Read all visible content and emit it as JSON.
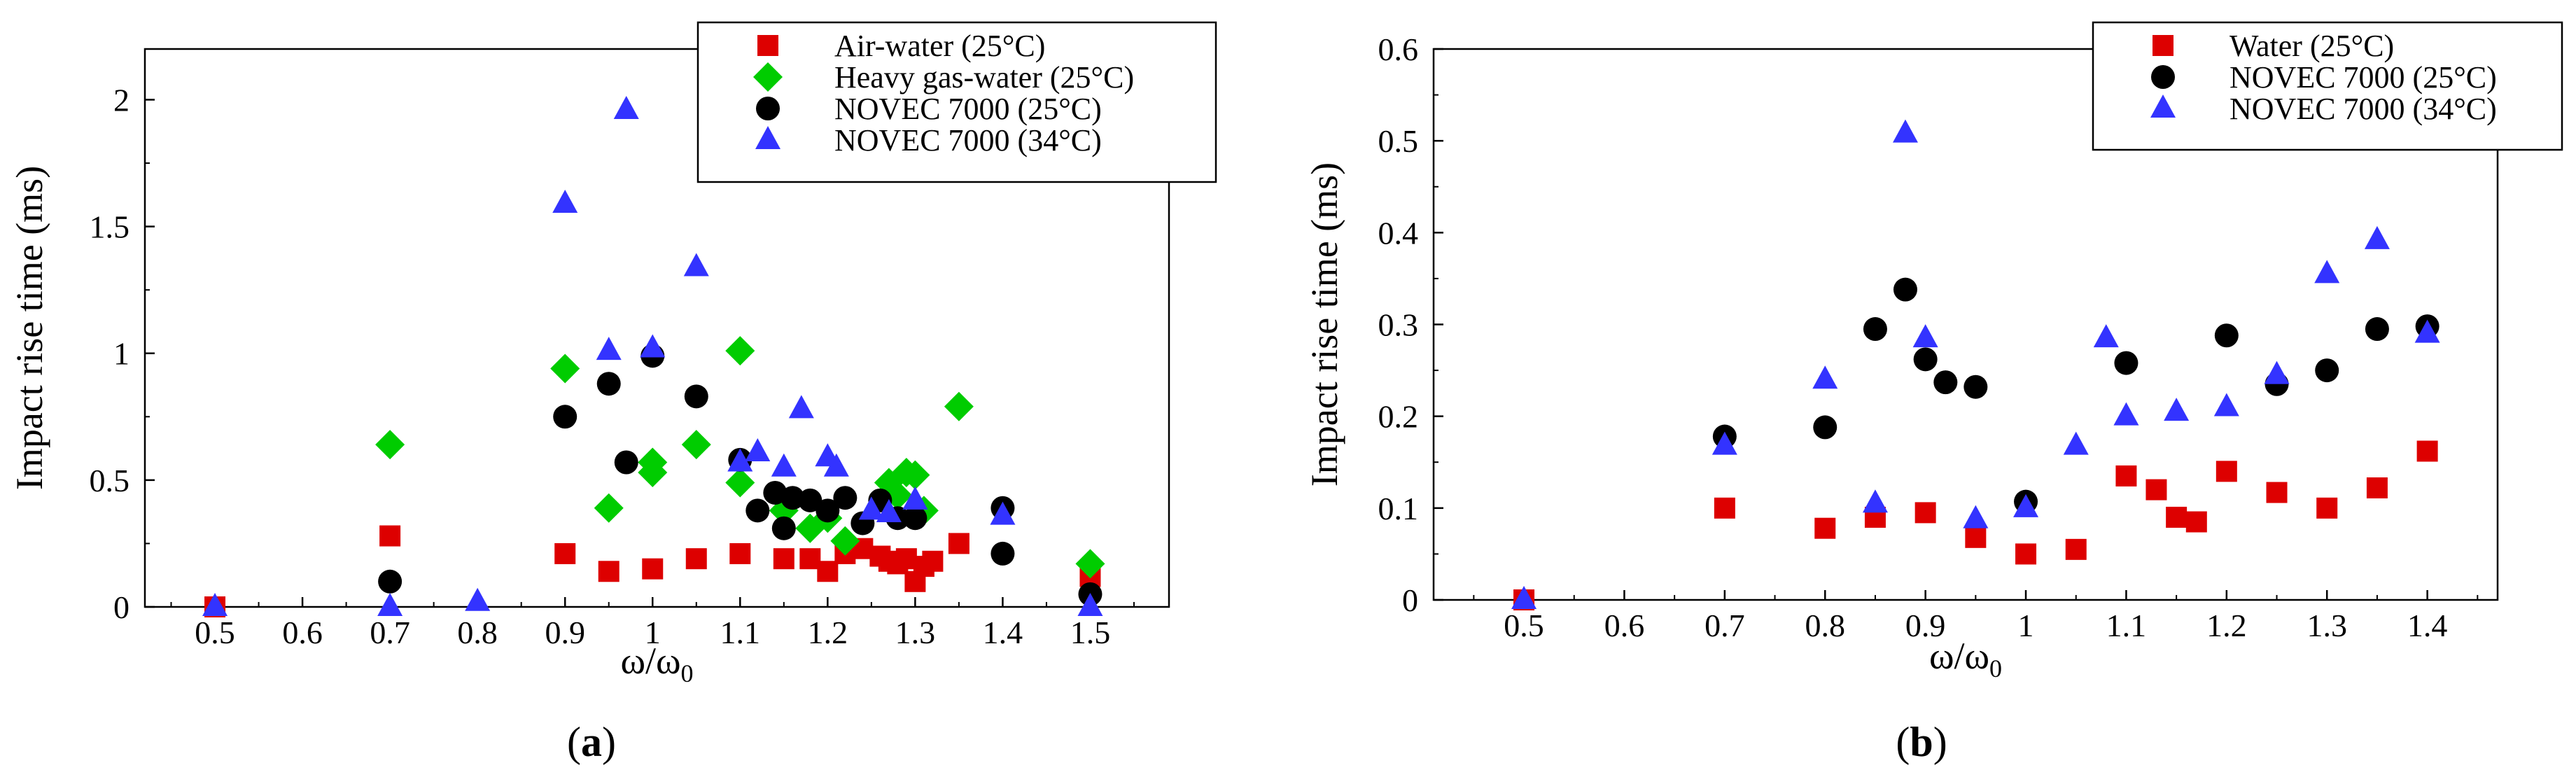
{
  "chart_data": [
    {
      "type": "scatter",
      "caption_letter": "a",
      "xlabel_main": "ω/ω",
      "xlabel_sub": "0",
      "ylabel": "Impact rise time (ms)",
      "xlim": [
        0.42,
        1.59
      ],
      "ylim": [
        0,
        2.2
      ],
      "xticks": [
        "0.5",
        "0.6",
        "0.7",
        "0.8",
        "0.9",
        "1",
        "1.1",
        "1.2",
        "1.3",
        "1.4",
        "1.5"
      ],
      "yticks": [
        "0",
        "0.5",
        "1",
        "1.5",
        "2"
      ],
      "grid": false,
      "legend_position": "top-right",
      "series": [
        {
          "name": "Air-water (25°C)",
          "marker": "square",
          "color": "#dd0000",
          "points": [
            [
              0.5,
              0.0
            ],
            [
              0.7,
              0.28
            ],
            [
              0.9,
              0.21
            ],
            [
              0.95,
              0.14
            ],
            [
              1.0,
              0.15
            ],
            [
              1.05,
              0.19
            ],
            [
              1.1,
              0.21
            ],
            [
              1.15,
              0.19
            ],
            [
              1.18,
              0.19
            ],
            [
              1.2,
              0.14
            ],
            [
              1.22,
              0.21
            ],
            [
              1.24,
              0.23
            ],
            [
              1.26,
              0.2
            ],
            [
              1.27,
              0.18
            ],
            [
              1.28,
              0.17
            ],
            [
              1.29,
              0.19
            ],
            [
              1.3,
              0.1
            ],
            [
              1.31,
              0.16
            ],
            [
              1.32,
              0.18
            ],
            [
              1.35,
              0.25
            ],
            [
              1.5,
              0.12
            ]
          ]
        },
        {
          "name": "Heavy gas-water (25°C)",
          "marker": "diamond",
          "color": "#00cc00",
          "points": [
            [
              0.7,
              0.64
            ],
            [
              0.9,
              0.94
            ],
            [
              0.95,
              0.39
            ],
            [
              1.0,
              0.57
            ],
            [
              1.0,
              0.53
            ],
            [
              1.05,
              0.64
            ],
            [
              1.1,
              1.01
            ],
            [
              1.1,
              0.49
            ],
            [
              1.15,
              0.38
            ],
            [
              1.18,
              0.31
            ],
            [
              1.2,
              0.35
            ],
            [
              1.22,
              0.26
            ],
            [
              1.27,
              0.49
            ],
            [
              1.28,
              0.44
            ],
            [
              1.29,
              0.53
            ],
            [
              1.3,
              0.52
            ],
            [
              1.31,
              0.38
            ],
            [
              1.35,
              0.79
            ],
            [
              1.5,
              0.17
            ]
          ]
        },
        {
          "name": "NOVEC 7000 (25°C)",
          "marker": "circle",
          "color": "#000000",
          "points": [
            [
              0.7,
              0.1
            ],
            [
              0.9,
              0.75
            ],
            [
              0.95,
              0.88
            ],
            [
              0.97,
              0.57
            ],
            [
              1.0,
              0.99
            ],
            [
              1.05,
              0.83
            ],
            [
              1.1,
              0.58
            ],
            [
              1.12,
              0.38
            ],
            [
              1.14,
              0.45
            ],
            [
              1.15,
              0.31
            ],
            [
              1.16,
              0.43
            ],
            [
              1.18,
              0.42
            ],
            [
              1.2,
              0.38
            ],
            [
              1.22,
              0.43
            ],
            [
              1.24,
              0.33
            ],
            [
              1.26,
              0.42
            ],
            [
              1.28,
              0.35
            ],
            [
              1.3,
              0.35
            ],
            [
              1.4,
              0.39
            ],
            [
              1.4,
              0.21
            ],
            [
              1.5,
              0.05
            ]
          ]
        },
        {
          "name": "NOVEC 7000 (34°C)",
          "marker": "triangle",
          "color": "#3333ff",
          "points": [
            [
              0.5,
              0.0
            ],
            [
              0.7,
              0.0
            ],
            [
              0.8,
              0.02
            ],
            [
              0.9,
              1.59
            ],
            [
              0.95,
              1.01
            ],
            [
              0.97,
              1.96
            ],
            [
              1.0,
              1.02
            ],
            [
              1.05,
              1.34
            ],
            [
              1.1,
              0.57
            ],
            [
              1.12,
              0.61
            ],
            [
              1.15,
              0.55
            ],
            [
              1.17,
              0.78
            ],
            [
              1.2,
              0.59
            ],
            [
              1.21,
              0.55
            ],
            [
              1.25,
              0.38
            ],
            [
              1.27,
              0.37
            ],
            [
              1.3,
              0.42
            ],
            [
              1.4,
              0.36
            ],
            [
              1.5,
              0.0
            ]
          ]
        }
      ]
    },
    {
      "type": "scatter",
      "caption_letter": "b",
      "xlabel_main": "ω/ω",
      "xlabel_sub": "0",
      "ylabel": "Impact rise time (ms)",
      "xlim": [
        0.41,
        1.47
      ],
      "ylim": [
        0,
        0.6
      ],
      "xticks": [
        "0.5",
        "0.6",
        "0.7",
        "0.8",
        "0.9",
        "1",
        "1.1",
        "1.2",
        "1.3",
        "1.4"
      ],
      "yticks": [
        "0",
        "0.1",
        "0.2",
        "0.3",
        "0.4",
        "0.5",
        "0.6"
      ],
      "grid": false,
      "legend_position": "top-right",
      "series": [
        {
          "name": "Water (25°C)",
          "marker": "square",
          "color": "#dd0000",
          "points": [
            [
              0.5,
              0.0
            ],
            [
              0.7,
              0.1
            ],
            [
              0.8,
              0.078
            ],
            [
              0.85,
              0.09
            ],
            [
              0.9,
              0.095
            ],
            [
              0.95,
              0.068
            ],
            [
              1.0,
              0.05
            ],
            [
              1.05,
              0.055
            ],
            [
              1.1,
              0.135
            ],
            [
              1.13,
              0.12
            ],
            [
              1.15,
              0.09
            ],
            [
              1.17,
              0.085
            ],
            [
              1.2,
              0.14
            ],
            [
              1.25,
              0.117
            ],
            [
              1.3,
              0.1
            ],
            [
              1.35,
              0.122
            ],
            [
              1.4,
              0.162
            ]
          ]
        },
        {
          "name": "NOVEC 7000 (25°C)",
          "marker": "circle",
          "color": "#000000",
          "points": [
            [
              0.7,
              0.178
            ],
            [
              0.8,
              0.188
            ],
            [
              0.85,
              0.295
            ],
            [
              0.88,
              0.338
            ],
            [
              0.9,
              0.262
            ],
            [
              0.92,
              0.237
            ],
            [
              0.95,
              0.232
            ],
            [
              1.0,
              0.107
            ],
            [
              1.1,
              0.258
            ],
            [
              1.2,
              0.288
            ],
            [
              1.25,
              0.235
            ],
            [
              1.3,
              0.25
            ],
            [
              1.35,
              0.295
            ],
            [
              1.4,
              0.298
            ]
          ]
        },
        {
          "name": "NOVEC 7000 (34°C)",
          "marker": "triangle",
          "color": "#3333ff",
          "points": [
            [
              0.5,
              0.0
            ],
            [
              0.7,
              0.168
            ],
            [
              0.8,
              0.24
            ],
            [
              0.85,
              0.105
            ],
            [
              0.88,
              0.508
            ],
            [
              0.9,
              0.285
            ],
            [
              0.95,
              0.088
            ],
            [
              1.0,
              0.1
            ],
            [
              1.05,
              0.168
            ],
            [
              1.08,
              0.285
            ],
            [
              1.1,
              0.2
            ],
            [
              1.15,
              0.205
            ],
            [
              1.2,
              0.21
            ],
            [
              1.25,
              0.245
            ],
            [
              1.3,
              0.355
            ],
            [
              1.35,
              0.392
            ],
            [
              1.4,
              0.29
            ]
          ]
        }
      ]
    }
  ]
}
